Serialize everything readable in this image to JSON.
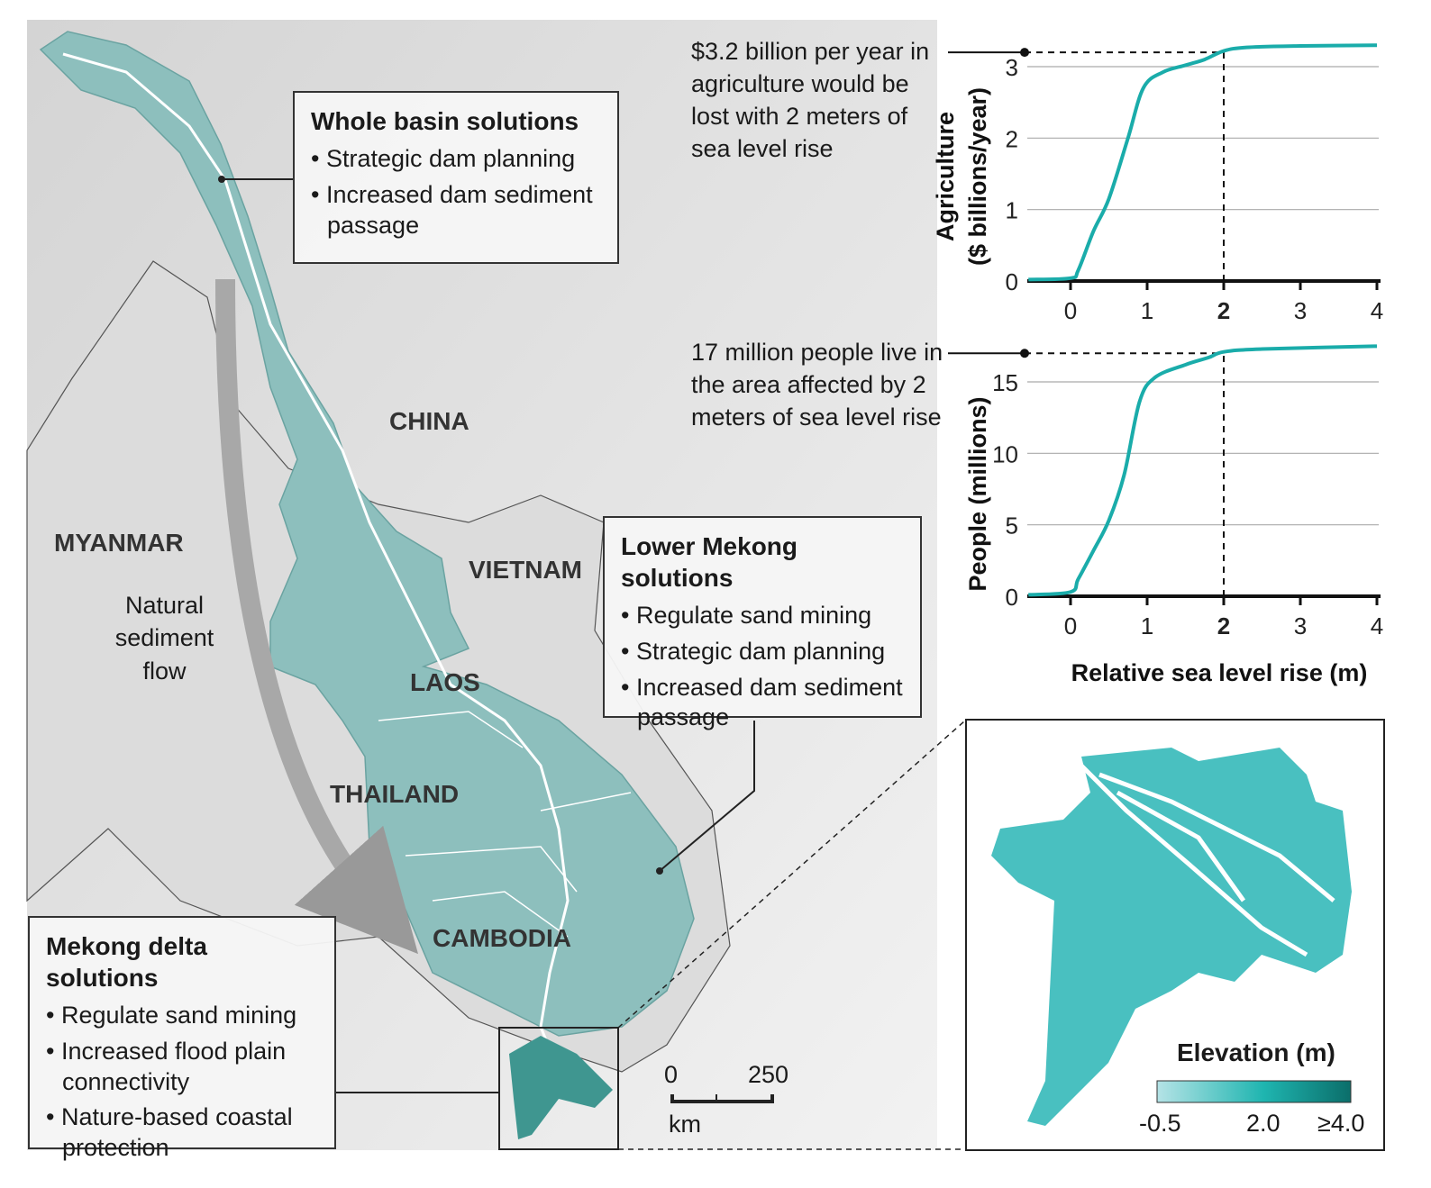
{
  "map": {
    "countries": [
      "CHINA",
      "MYANMAR",
      "VIETNAM",
      "LAOS",
      "THAILAND",
      "CAMBODIA"
    ],
    "arrow_label": "Natural sediment flow",
    "scale": {
      "start": "0",
      "end": "250",
      "unit": "km"
    }
  },
  "boxes": {
    "whole_basin": {
      "title": "Whole basin solutions",
      "items": [
        "Strategic dam planning",
        "Increased dam sediment passage"
      ]
    },
    "lower_mekong": {
      "title": "Lower Mekong solutions",
      "items": [
        "Regulate sand mining",
        "Strategic dam planning",
        "Increased dam sediment passage"
      ]
    },
    "delta": {
      "title": "Mekong delta solutions",
      "items": [
        "Regulate sand mining",
        "Increased flood plain connectivity",
        "Nature-based coastal protection"
      ]
    }
  },
  "annotations": {
    "agri": "$3.2 billion per year in agriculture would be lost with 2 meters of sea level rise",
    "people": "17 million people live in the area affected by 2 meters of sea level rise"
  },
  "inset": {
    "legend_title": "Elevation (m)",
    "legend_labels": [
      "-0.5",
      "2.0",
      "≥4.0"
    ],
    "colors": [
      "#b5e3e6",
      "#1fb5b0",
      "#0b6e6a"
    ]
  },
  "colors": {
    "curve": "#1aacaa",
    "basin": "#7fb6b4",
    "delta": "#3f9690"
  },
  "chart_data": [
    {
      "type": "line",
      "ylabel": "Agriculture ($ billions/year)",
      "xlabel": "Relative sea level rise (m)",
      "xlim": [
        -0.55,
        4
      ],
      "ylim": [
        0,
        3.4
      ],
      "xticks": [
        "0",
        "1",
        "2",
        "3",
        "4"
      ],
      "yticks": [
        "0",
        "1",
        "2",
        "3"
      ],
      "grid": true,
      "highlight_x": 2,
      "highlight_y": 3.2,
      "x": [
        -0.55,
        0,
        0.1,
        0.3,
        0.5,
        0.75,
        0.95,
        1.2,
        1.5,
        1.75,
        2,
        2.3,
        3,
        4
      ],
      "y": [
        0.02,
        0.04,
        0.15,
        0.7,
        1.15,
        2.0,
        2.7,
        2.92,
        3.02,
        3.1,
        3.22,
        3.27,
        3.29,
        3.3
      ]
    },
    {
      "type": "line",
      "ylabel": "People (millions)",
      "xlabel": "Relative sea level rise (m)",
      "xlim": [
        -0.55,
        4
      ],
      "ylim": [
        0,
        18
      ],
      "xticks": [
        "0",
        "1",
        "2",
        "3",
        "4"
      ],
      "yticks": [
        "0",
        "5",
        "10",
        "15"
      ],
      "grid": true,
      "highlight_x": 2,
      "highlight_y": 17,
      "x": [
        -0.55,
        0,
        0.1,
        0.3,
        0.5,
        0.7,
        0.9,
        1.1,
        1.5,
        1.8,
        2,
        2.5,
        4
      ],
      "y": [
        0.1,
        0.3,
        1.2,
        3.2,
        5.3,
        8.5,
        13.6,
        15.3,
        16.2,
        16.7,
        17.1,
        17.3,
        17.5
      ]
    }
  ]
}
